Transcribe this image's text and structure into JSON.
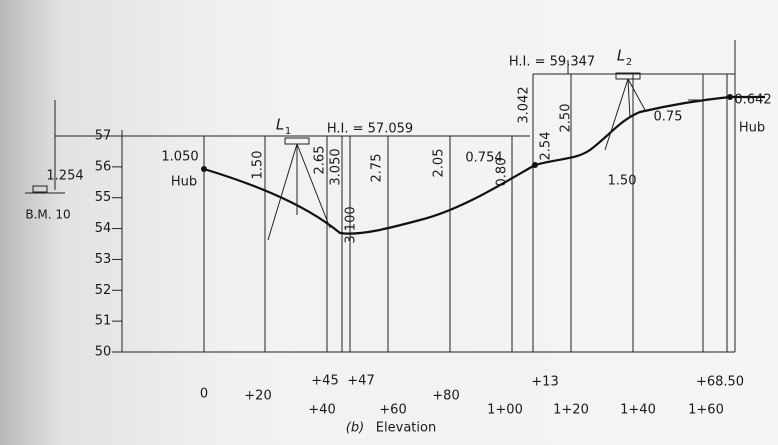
{
  "elevation_ticks": [
    57,
    56,
    55,
    54,
    53,
    52,
    51,
    50
  ],
  "stations": [
    "0",
    "+20",
    "+40",
    "+45",
    "+47",
    "+60",
    "+80",
    "1+00",
    "+13",
    "1+20",
    "1+40",
    "1+60",
    "+68.50"
  ],
  "readings": [
    "1.254",
    "1.050",
    "1.50",
    "2.65",
    "3.050",
    "3.100",
    "2.75",
    "2.05",
    "0.80",
    "0.754",
    "2.54",
    "2.50",
    "3.042",
    "1.50",
    "0.75",
    "0.642"
  ],
  "annotations": {
    "hi_1": "H.I. = 57.059",
    "hi_2": "H.I. = 59.347",
    "bm": "B.M. 10",
    "hub_1": "Hub",
    "hub_2": "Hub",
    "instrument_1": "L",
    "instrument_1_sub": "1",
    "instrument_2": "L",
    "instrument_2_sub": "2"
  },
  "caption": {
    "label": "(b)",
    "title": "Elevation"
  }
}
